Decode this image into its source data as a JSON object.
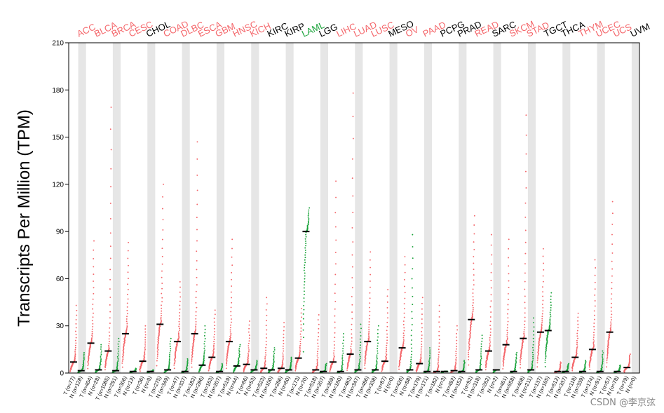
{
  "chart_data": {
    "type": "scatter",
    "title": "",
    "ylabel": "Transcripts Per Million (TPM)",
    "ylim": [
      0,
      210
    ],
    "yticks": [
      0,
      30,
      60,
      90,
      120,
      150,
      180,
      210
    ],
    "grid": false,
    "colors": {
      "tumor": "#f4676b",
      "normal": "#1aa33a",
      "highlight_up": "#f4676b",
      "highlight_down": "#1aa33a",
      "neutral": "#000000",
      "shade": "#e6e6e6"
    },
    "cancers": [
      {
        "name": "ACC",
        "status": "up",
        "groups": [
          {
            "label": "T (n=77)",
            "median": 7,
            "max": 43
          },
          {
            "label": "N (n=128)",
            "median": 1.5,
            "max": 13
          }
        ]
      },
      {
        "name": "BLCA",
        "status": "up",
        "groups": [
          {
            "label": "T (n=404)",
            "median": 19,
            "max": 84
          },
          {
            "label": "N (n=28)",
            "median": 2,
            "max": 18
          }
        ]
      },
      {
        "name": "BRCA",
        "status": "up",
        "groups": [
          {
            "label": "T (n=1085)",
            "median": 14,
            "max": 169
          },
          {
            "label": "N (n=291)",
            "median": 1.5,
            "max": 22
          }
        ]
      },
      {
        "name": "CESC",
        "status": "up",
        "groups": [
          {
            "label": "T (n=306)",
            "median": 25,
            "max": 83
          },
          {
            "label": "N (n=13)",
            "median": 1,
            "max": 3
          }
        ]
      },
      {
        "name": "CHOL",
        "status": "neutral",
        "groups": [
          {
            "label": "T (n=36)",
            "median": 7.5,
            "max": 30
          },
          {
            "label": "N (n=9)",
            "median": 1,
            "max": 2
          }
        ]
      },
      {
        "name": "COAD",
        "status": "up",
        "groups": [
          {
            "label": "T (n=275)",
            "median": 31,
            "max": 120
          },
          {
            "label": "N (n=349)",
            "median": 2,
            "max": 22
          }
        ]
      },
      {
        "name": "DLBC",
        "status": "up",
        "groups": [
          {
            "label": "T (n=47)",
            "median": 20,
            "max": 58
          },
          {
            "label": "N (n=337)",
            "median": 1,
            "max": 9
          }
        ]
      },
      {
        "name": "ESCA",
        "status": "up",
        "groups": [
          {
            "label": "T (n=182)",
            "median": 25,
            "max": 147
          },
          {
            "label": "N (n=286)",
            "median": 5,
            "max": 30
          }
        ]
      },
      {
        "name": "GBM",
        "status": "up",
        "groups": [
          {
            "label": "T (n=163)",
            "median": 10,
            "max": 40
          },
          {
            "label": "N (n=207)",
            "median": 1,
            "max": 6
          }
        ]
      },
      {
        "name": "HNSC",
        "status": "up",
        "groups": [
          {
            "label": "T (n=519)",
            "median": 20,
            "max": 85
          },
          {
            "label": "N (n=44)",
            "median": 4.5,
            "max": 18
          }
        ]
      },
      {
        "name": "KICH",
        "status": "up",
        "groups": [
          {
            "label": "T (n=66)",
            "median": 5.5,
            "max": 33
          },
          {
            "label": "N (n=53)",
            "median": 2,
            "max": 8
          }
        ]
      },
      {
        "name": "KIRC",
        "status": "neutral",
        "groups": [
          {
            "label": "T (n=523)",
            "median": 3,
            "max": 48
          },
          {
            "label": "N (n=100)",
            "median": 2,
            "max": 16
          }
        ]
      },
      {
        "name": "KIRP",
        "status": "neutral",
        "groups": [
          {
            "label": "T (n=286)",
            "median": 3,
            "max": 32
          },
          {
            "label": "N (n=60)",
            "median": 2,
            "max": 10
          }
        ]
      },
      {
        "name": "LAML",
        "status": "down",
        "groups": [
          {
            "label": "T (n=173)",
            "median": 9.5,
            "max": 41
          },
          {
            "label": "N (n=70)",
            "median": 90,
            "max": 105
          }
        ]
      },
      {
        "name": "LGG",
        "status": "neutral",
        "groups": [
          {
            "label": "T (n=518)",
            "median": 2,
            "max": 37
          },
          {
            "label": "N (n=207)",
            "median": 1,
            "max": 6
          }
        ]
      },
      {
        "name": "LIHC",
        "status": "up",
        "groups": [
          {
            "label": "T (n=369)",
            "median": 7,
            "max": 122
          },
          {
            "label": "N (n=160)",
            "median": 1,
            "max": 25
          }
        ]
      },
      {
        "name": "LUAD",
        "status": "up",
        "groups": [
          {
            "label": "T (n=483)",
            "median": 12,
            "max": 178
          },
          {
            "label": "N (n=347)",
            "median": 2,
            "max": 31
          }
        ]
      },
      {
        "name": "LUSC",
        "status": "up",
        "groups": [
          {
            "label": "T (n=486)",
            "median": 20,
            "max": 77
          },
          {
            "label": "N (n=338)",
            "median": 2,
            "max": 30
          }
        ]
      },
      {
        "name": "MESO",
        "status": "neutral",
        "groups": [
          {
            "label": "T (n=87)",
            "median": 7.5,
            "max": 53
          },
          {
            "label": "N (n=0)",
            "median": null,
            "max": null
          }
        ]
      },
      {
        "name": "OV",
        "status": "up",
        "groups": [
          {
            "label": "T (n=426)",
            "median": 16,
            "max": 74
          },
          {
            "label": "N (n=88)",
            "median": 2,
            "max": 88
          }
        ]
      },
      {
        "name": "PAAD",
        "status": "up",
        "groups": [
          {
            "label": "T (n=179)",
            "median": 6,
            "max": 48
          },
          {
            "label": "N (n=171)",
            "median": 1,
            "max": 16
          }
        ]
      },
      {
        "name": "PCPG",
        "status": "neutral",
        "groups": [
          {
            "label": "T (n=182)",
            "median": 1,
            "max": 43
          },
          {
            "label": "N (n=3)",
            "median": 1,
            "max": 1
          }
        ]
      },
      {
        "name": "PRAD",
        "status": "neutral",
        "groups": [
          {
            "label": "T (n=492)",
            "median": 1.5,
            "max": 30
          },
          {
            "label": "N (n=152)",
            "median": 1,
            "max": 8
          }
        ]
      },
      {
        "name": "READ",
        "status": "up",
        "groups": [
          {
            "label": "T (n=92)",
            "median": 34,
            "max": 100
          },
          {
            "label": "N (n=318)",
            "median": 2,
            "max": 24
          }
        ]
      },
      {
        "name": "SARC",
        "status": "neutral",
        "groups": [
          {
            "label": "T (n=262)",
            "median": 14,
            "max": 88
          },
          {
            "label": "N (n=2)",
            "median": 2,
            "max": 2
          }
        ]
      },
      {
        "name": "SKCM",
        "status": "up",
        "groups": [
          {
            "label": "T (n=461)",
            "median": 18,
            "max": 85
          },
          {
            "label": "N (n=558)",
            "median": 1,
            "max": 13
          }
        ]
      },
      {
        "name": "STAD",
        "status": "up",
        "groups": [
          {
            "label": "T (n=408)",
            "median": 22,
            "max": 164
          },
          {
            "label": "N (n=211)",
            "median": 2,
            "max": 35
          }
        ]
      },
      {
        "name": "TGCT",
        "status": "neutral",
        "groups": [
          {
            "label": "T (n=137)",
            "median": 26,
            "max": 79
          },
          {
            "label": "N (n=165)",
            "median": 27,
            "max": 51
          }
        ]
      },
      {
        "name": "THCA",
        "status": "neutral",
        "groups": [
          {
            "label": "T (n=512)",
            "median": 1,
            "max": 7
          },
          {
            "label": "N (n=337)",
            "median": 1,
            "max": 6
          }
        ]
      },
      {
        "name": "THYM",
        "status": "up",
        "groups": [
          {
            "label": "T (n=118)",
            "median": 10,
            "max": 38
          },
          {
            "label": "N (n=339)",
            "median": 1,
            "max": 8
          }
        ]
      },
      {
        "name": "UCEC",
        "status": "up",
        "groups": [
          {
            "label": "T (n=174)",
            "median": 15,
            "max": 72
          },
          {
            "label": "N (n=91)",
            "median": 1,
            "max": 14
          }
        ]
      },
      {
        "name": "UCS",
        "status": "up",
        "groups": [
          {
            "label": "T (n=57)",
            "median": 26,
            "max": 109
          },
          {
            "label": "N (n=78)",
            "median": 1,
            "max": 5
          }
        ]
      },
      {
        "name": "UVM",
        "status": "neutral",
        "groups": [
          {
            "label": "T (n=79)",
            "median": 3.5,
            "max": 12
          },
          {
            "label": "N (n=0)",
            "median": null,
            "max": null
          }
        ]
      }
    ]
  },
  "watermark": "CSDN @李京弦"
}
